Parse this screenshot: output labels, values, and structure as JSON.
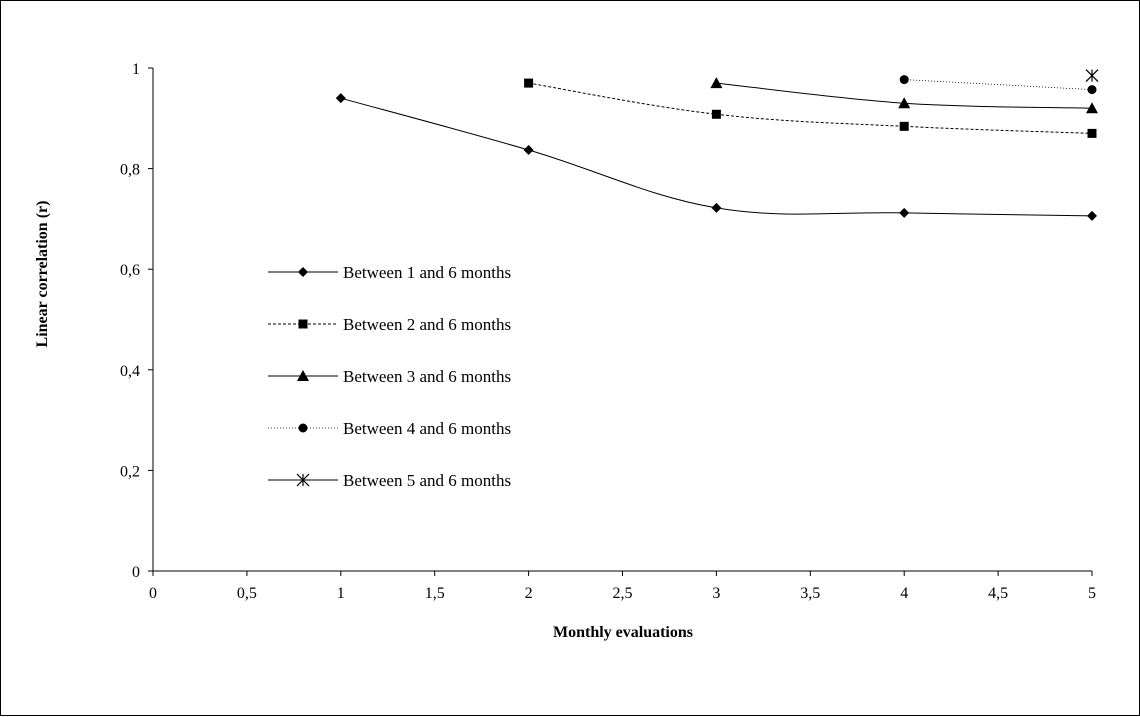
{
  "chart_data": {
    "type": "line",
    "title": "",
    "xlabel": "Monthly evaluations",
    "ylabel": "Linear correlation (r)",
    "xlim": [
      0,
      5
    ],
    "ylim": [
      0,
      1
    ],
    "xticks": [
      0,
      0.5,
      1,
      1.5,
      2,
      2.5,
      3,
      3.5,
      4,
      4.5,
      5
    ],
    "xtick_labels": [
      "0",
      "0,5",
      "1",
      "1,5",
      "2",
      "2,5",
      "3",
      "3,5",
      "4",
      "4,5",
      "5"
    ],
    "yticks": [
      0,
      0.2,
      0.4,
      0.6,
      0.8,
      1
    ],
    "ytick_labels": [
      "0",
      "0,2",
      "0,4",
      "0,6",
      "0,8",
      "1"
    ],
    "grid": false,
    "legend_position": "center-left",
    "series": [
      {
        "name": "Between 1 and 6 months",
        "marker": "diamond",
        "line_style": "solid",
        "smooth": true,
        "x": [
          1,
          2,
          3,
          4,
          5
        ],
        "y": [
          0.94,
          0.837,
          0.722,
          0.712,
          0.706
        ]
      },
      {
        "name": "Between 2 and 6 months",
        "marker": "square",
        "line_style": "dashed",
        "smooth": true,
        "x": [
          2,
          3,
          4,
          5
        ],
        "y": [
          0.97,
          0.908,
          0.884,
          0.87
        ]
      },
      {
        "name": "Between 3 and 6 months",
        "marker": "triangle",
        "line_style": "solid",
        "smooth": true,
        "x": [
          3,
          4,
          5
        ],
        "y": [
          0.97,
          0.93,
          0.92
        ]
      },
      {
        "name": "Between 4 and 6 months",
        "marker": "circle",
        "line_style": "dotted",
        "smooth": true,
        "x": [
          4,
          5
        ],
        "y": [
          0.977,
          0.957
        ]
      },
      {
        "name": "Between 5 and 6 months",
        "marker": "asterisk",
        "line_style": "solid",
        "smooth": true,
        "x": [
          5
        ],
        "y": [
          0.985
        ]
      }
    ]
  }
}
